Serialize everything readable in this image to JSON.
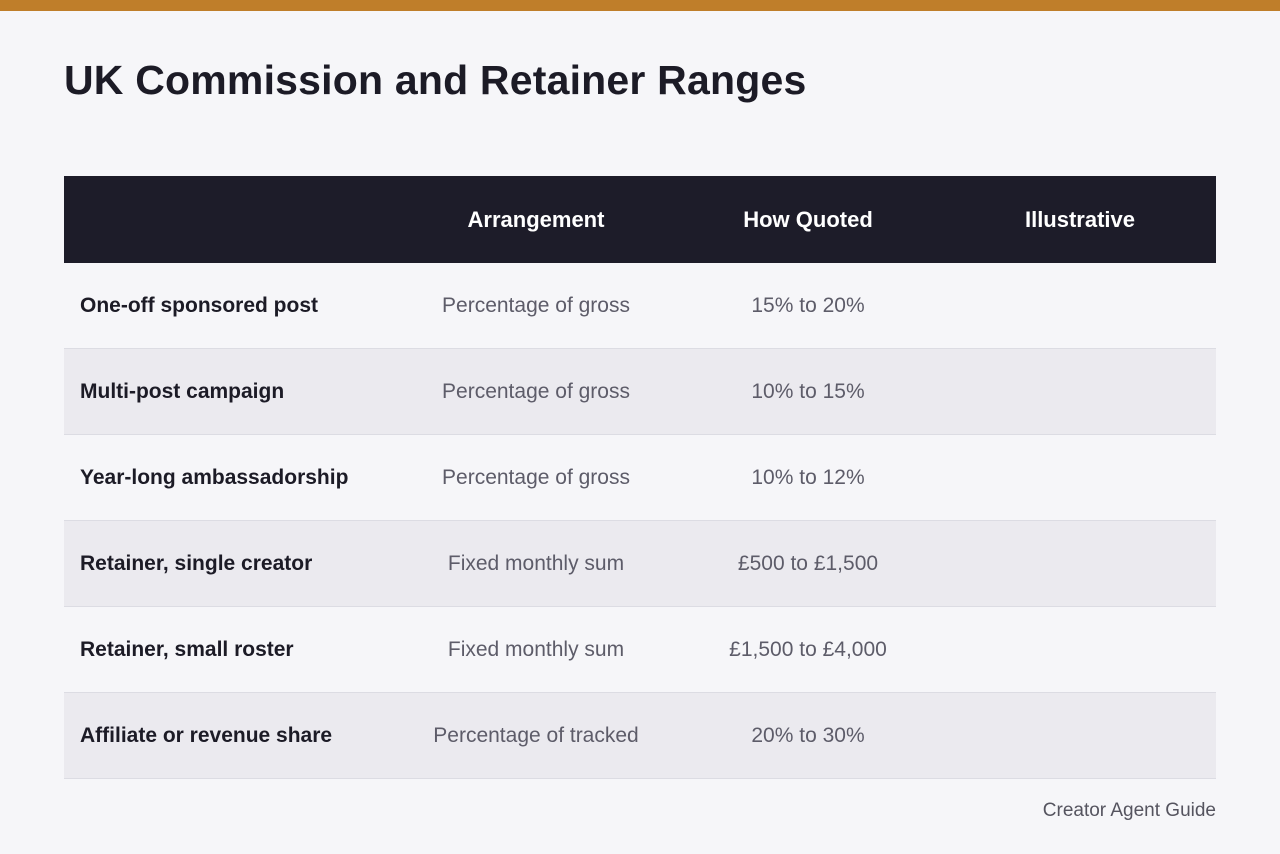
{
  "header": {
    "title": "UK Commission and Retainer Ranges",
    "accent_color": "#bf7e2a"
  },
  "table": {
    "columns": [
      "",
      "Arrangement",
      "How Quoted",
      "Illustrative"
    ],
    "rows": [
      {
        "label": "One-off sponsored post",
        "arrangement": "Percentage of gross",
        "quoted": "15% to 20%",
        "illustrative": ""
      },
      {
        "label": "Multi-post campaign",
        "arrangement": "Percentage of gross",
        "quoted": "10% to 15%",
        "illustrative": ""
      },
      {
        "label": "Year-long ambassadorship",
        "arrangement": "Percentage of gross",
        "quoted": "10% to 12%",
        "illustrative": ""
      },
      {
        "label": "Retainer, single creator",
        "arrangement": "Fixed monthly sum",
        "quoted": "£500 to £1,500",
        "illustrative": ""
      },
      {
        "label": "Retainer, small roster",
        "arrangement": "Fixed monthly sum",
        "quoted": "£1,500 to £4,000",
        "illustrative": ""
      },
      {
        "label": "Affiliate or revenue share",
        "arrangement": "Percentage of tracked",
        "quoted": "20% to 30%",
        "illustrative": ""
      }
    ]
  },
  "footer": {
    "credit": "Creator Agent Guide"
  }
}
